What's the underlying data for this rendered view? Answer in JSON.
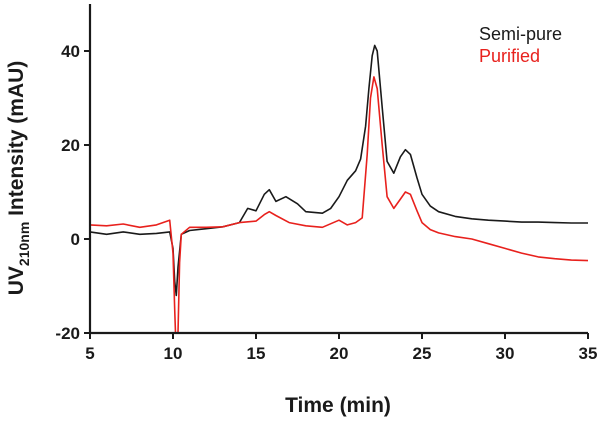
{
  "chart_data": {
    "type": "line",
    "title": "",
    "xlabel": "Time (min)",
    "ylabel": {
      "main": "UV",
      "sub": "210nm",
      "rest": " Intensity (mAU)"
    },
    "xlim": [
      5,
      35
    ],
    "ylim": [
      -20,
      50
    ],
    "xticks": [
      5,
      10,
      15,
      20,
      25,
      30,
      35
    ],
    "yticks": [
      -20,
      0,
      20,
      40
    ],
    "xtick_labels": [
      "5",
      "10",
      "15",
      "20",
      "25",
      "30",
      "35"
    ],
    "ytick_labels": [
      "-20",
      "0",
      "20",
      "40"
    ],
    "legend_position": "top-right",
    "series": [
      {
        "name": "Semi-pure",
        "color": "#1a1a1a",
        "points": [
          [
            5.0,
            1.5
          ],
          [
            6.0,
            1.0
          ],
          [
            7.0,
            1.5
          ],
          [
            8.0,
            1.0
          ],
          [
            9.0,
            1.2
          ],
          [
            9.8,
            1.5
          ],
          [
            10.0,
            -2.0
          ],
          [
            10.1,
            -9.0
          ],
          [
            10.2,
            -12.0
          ],
          [
            10.3,
            -6.0
          ],
          [
            10.5,
            1.0
          ],
          [
            11.0,
            1.8
          ],
          [
            12.0,
            2.2
          ],
          [
            13.0,
            2.6
          ],
          [
            14.0,
            3.5
          ],
          [
            14.5,
            6.5
          ],
          [
            15.0,
            6.0
          ],
          [
            15.5,
            9.5
          ],
          [
            15.8,
            10.5
          ],
          [
            16.2,
            8.0
          ],
          [
            16.8,
            9.0
          ],
          [
            17.5,
            7.5
          ],
          [
            18.0,
            5.8
          ],
          [
            19.0,
            5.5
          ],
          [
            19.5,
            6.5
          ],
          [
            20.0,
            9.0
          ],
          [
            20.5,
            12.5
          ],
          [
            21.0,
            14.5
          ],
          [
            21.3,
            17.0
          ],
          [
            21.6,
            24.0
          ],
          [
            21.8,
            32.0
          ],
          [
            22.0,
            39.0
          ],
          [
            22.15,
            41.2
          ],
          [
            22.3,
            40.0
          ],
          [
            22.6,
            28.0
          ],
          [
            22.9,
            16.5
          ],
          [
            23.3,
            14.0
          ],
          [
            23.7,
            17.5
          ],
          [
            24.0,
            19.0
          ],
          [
            24.3,
            18.0
          ],
          [
            24.7,
            13.0
          ],
          [
            25.0,
            9.5
          ],
          [
            25.5,
            7.0
          ],
          [
            26.0,
            5.8
          ],
          [
            27.0,
            4.8
          ],
          [
            28.0,
            4.3
          ],
          [
            29.0,
            4.0
          ],
          [
            30.0,
            3.8
          ],
          [
            31.0,
            3.6
          ],
          [
            32.0,
            3.6
          ],
          [
            33.0,
            3.5
          ],
          [
            34.0,
            3.4
          ],
          [
            35.0,
            3.4
          ]
        ]
      },
      {
        "name": "Purified",
        "color": "#e8211d",
        "points": [
          [
            5.0,
            3.0
          ],
          [
            6.0,
            2.8
          ],
          [
            7.0,
            3.2
          ],
          [
            8.0,
            2.5
          ],
          [
            9.0,
            3.0
          ],
          [
            9.8,
            4.0
          ],
          [
            10.0,
            -3.0
          ],
          [
            10.1,
            -15.0
          ],
          [
            10.15,
            -20.0
          ],
          [
            10.3,
            -20.0
          ],
          [
            10.4,
            -5.0
          ],
          [
            10.5,
            1.0
          ],
          [
            11.0,
            2.5
          ],
          [
            12.0,
            2.5
          ],
          [
            13.0,
            2.6
          ],
          [
            14.0,
            3.5
          ],
          [
            15.0,
            3.8
          ],
          [
            15.5,
            5.2
          ],
          [
            15.8,
            5.8
          ],
          [
            16.2,
            5.0
          ],
          [
            17.0,
            3.5
          ],
          [
            18.0,
            2.8
          ],
          [
            19.0,
            2.5
          ],
          [
            20.0,
            4.0
          ],
          [
            20.5,
            3.0
          ],
          [
            21.0,
            3.5
          ],
          [
            21.4,
            4.5
          ],
          [
            21.7,
            18.0
          ],
          [
            21.9,
            30.0
          ],
          [
            22.1,
            34.5
          ],
          [
            22.3,
            32.0
          ],
          [
            22.6,
            20.0
          ],
          [
            22.9,
            9.0
          ],
          [
            23.3,
            6.5
          ],
          [
            23.7,
            8.5
          ],
          [
            24.0,
            10.0
          ],
          [
            24.3,
            9.5
          ],
          [
            24.7,
            6.0
          ],
          [
            25.0,
            3.5
          ],
          [
            25.5,
            2.0
          ],
          [
            26.0,
            1.3
          ],
          [
            27.0,
            0.5
          ],
          [
            28.0,
            0.0
          ],
          [
            29.0,
            -1.0
          ],
          [
            30.0,
            -2.0
          ],
          [
            31.0,
            -3.0
          ],
          [
            32.0,
            -3.8
          ],
          [
            33.0,
            -4.2
          ],
          [
            34.0,
            -4.5
          ],
          [
            35.0,
            -4.6
          ]
        ]
      }
    ]
  }
}
